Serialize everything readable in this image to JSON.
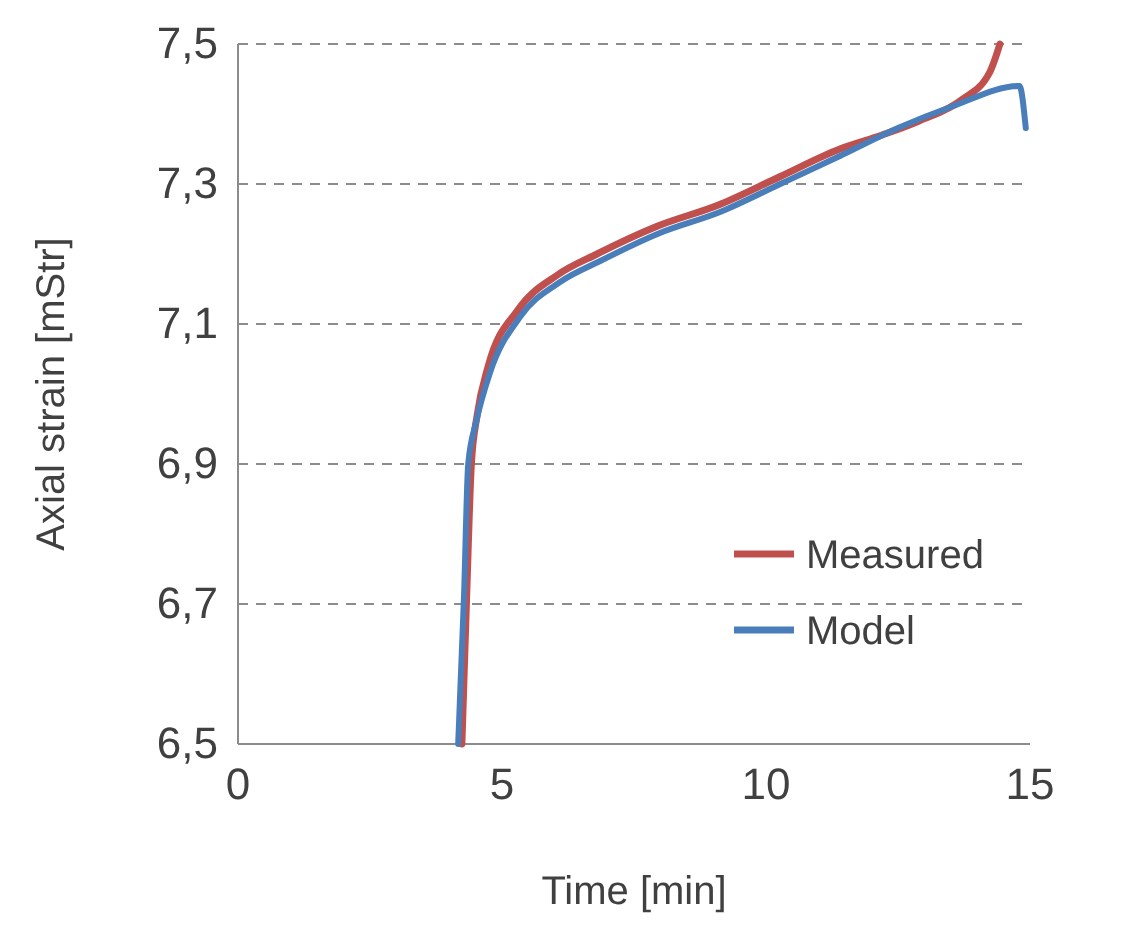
{
  "chart_data": {
    "type": "line",
    "xlabel": "Time [min]",
    "ylabel": "Axial strain [mStr]",
    "xlim": [
      0,
      15
    ],
    "xticks": [
      0,
      5,
      10,
      15
    ],
    "ylim": [
      6.5,
      7.5
    ],
    "yticks": [
      {
        "value": 6.5,
        "label": "6,5"
      },
      {
        "value": 6.7,
        "label": "6,7"
      },
      {
        "value": 6.9,
        "label": "6,9"
      },
      {
        "value": 7.1,
        "label": "7,1"
      },
      {
        "value": 7.3,
        "label": "7,3"
      },
      {
        "value": 7.5,
        "label": "7,5"
      }
    ],
    "grid": "y",
    "legend": "bottom right",
    "marker": "none",
    "line_style": "solid",
    "series": [
      {
        "name": "Measured",
        "color": "#c0504d",
        "x": [
          4.24,
          4.33,
          4.42,
          4.53,
          4.74,
          5.3,
          6.05,
          6.8,
          7.95,
          9.1,
          10.25,
          11.4,
          12.2,
          12.9,
          13.7,
          14.24,
          14.43
        ],
        "values": [
          6.5,
          6.71,
          6.9,
          6.97,
          7.04,
          7.12,
          7.17,
          7.2,
          7.24,
          7.27,
          7.31,
          7.35,
          7.37,
          7.39,
          7.42,
          7.46,
          7.5
        ]
      },
      {
        "name": "Model",
        "color": "#4a7ebb",
        "x": [
          4.17,
          4.28,
          4.36,
          4.51,
          4.77,
          5.34,
          6.1,
          6.86,
          7.99,
          9.13,
          10.27,
          11.4,
          12.5,
          13.5,
          14.8,
          14.92
        ],
        "values": [
          6.5,
          6.71,
          6.9,
          6.96,
          7.03,
          7.11,
          7.16,
          7.19,
          7.23,
          7.26,
          7.3,
          7.34,
          7.38,
          7.41,
          7.44,
          7.38
        ]
      }
    ]
  }
}
